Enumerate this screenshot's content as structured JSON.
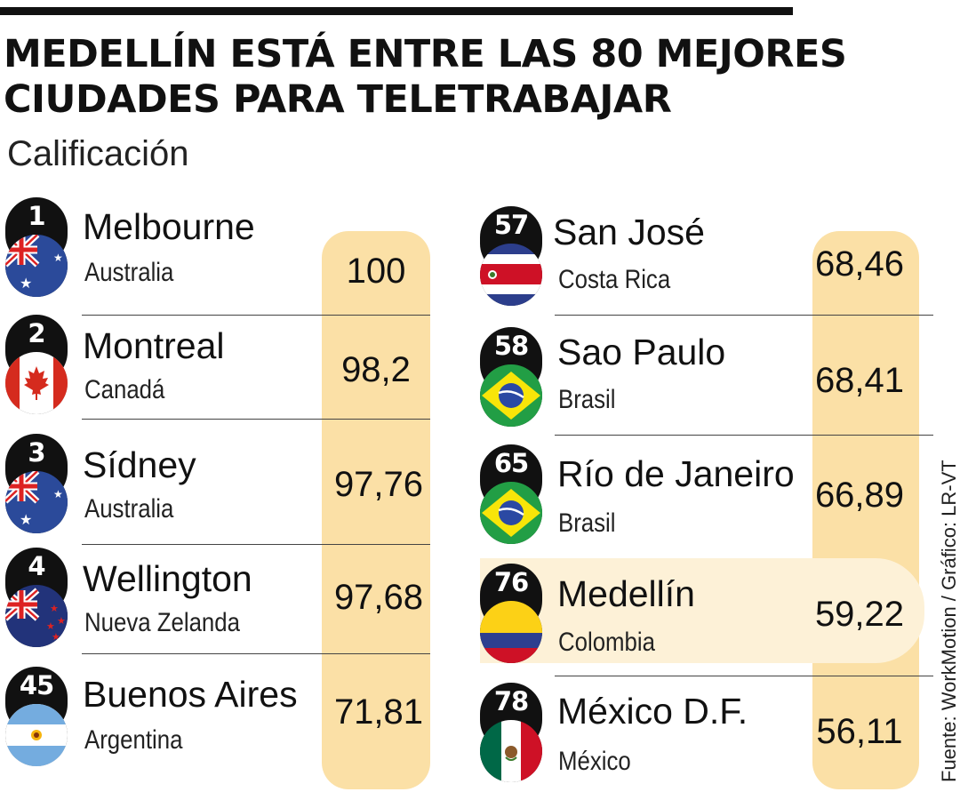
{
  "title_line1": "MEDELLÍN ESTÁ ENTRE LAS 80 MEJORES",
  "title_line2": "CIUDADES PARA TELETRABAJAR",
  "subtitle": "Calificación",
  "source": "Fuente: WorkMotion / Gráfico: LR-VT",
  "highlighted_city": "Medellín",
  "left_column": [
    {
      "rank": "1",
      "city": "Melbourne",
      "country": "Australia",
      "score": "100",
      "flag": "australia-flag-icon"
    },
    {
      "rank": "2",
      "city": "Montreal",
      "country": "Canadá",
      "score": "98,2",
      "flag": "canada-flag-icon"
    },
    {
      "rank": "3",
      "city": "Sídney",
      "country": "Australia",
      "score": "97,76",
      "flag": "australia-flag-icon"
    },
    {
      "rank": "4",
      "city": "Wellington",
      "country": "Nueva Zelanda",
      "score": "97,68",
      "flag": "new-zealand-flag-icon"
    },
    {
      "rank": "45",
      "city": "Buenos Aires",
      "country": "Argentina",
      "score": "71,81",
      "flag": "argentina-flag-icon"
    }
  ],
  "right_column": [
    {
      "rank": "57",
      "city": "San José",
      "country": "Costa Rica",
      "score": "68,46",
      "flag": "costa-rica-flag-icon"
    },
    {
      "rank": "58",
      "city": "Sao Paulo",
      "country": "Brasil",
      "score": "68,41",
      "flag": "brazil-flag-icon"
    },
    {
      "rank": "65",
      "city": "Río de Janeiro",
      "country": "Brasil",
      "score": "66,89",
      "flag": "brazil-flag-icon"
    },
    {
      "rank": "76",
      "city": "Medellín",
      "country": "Colombia",
      "score": "59,22",
      "flag": "colombia-flag-icon"
    },
    {
      "rank": "78",
      "city": "México D.F.",
      "country": "México",
      "score": "56,11",
      "flag": "mexico-flag-icon"
    }
  ],
  "colors": {
    "score_column": "#fbe0a6",
    "highlight": "#fdf1d7",
    "badge": "#111111"
  }
}
